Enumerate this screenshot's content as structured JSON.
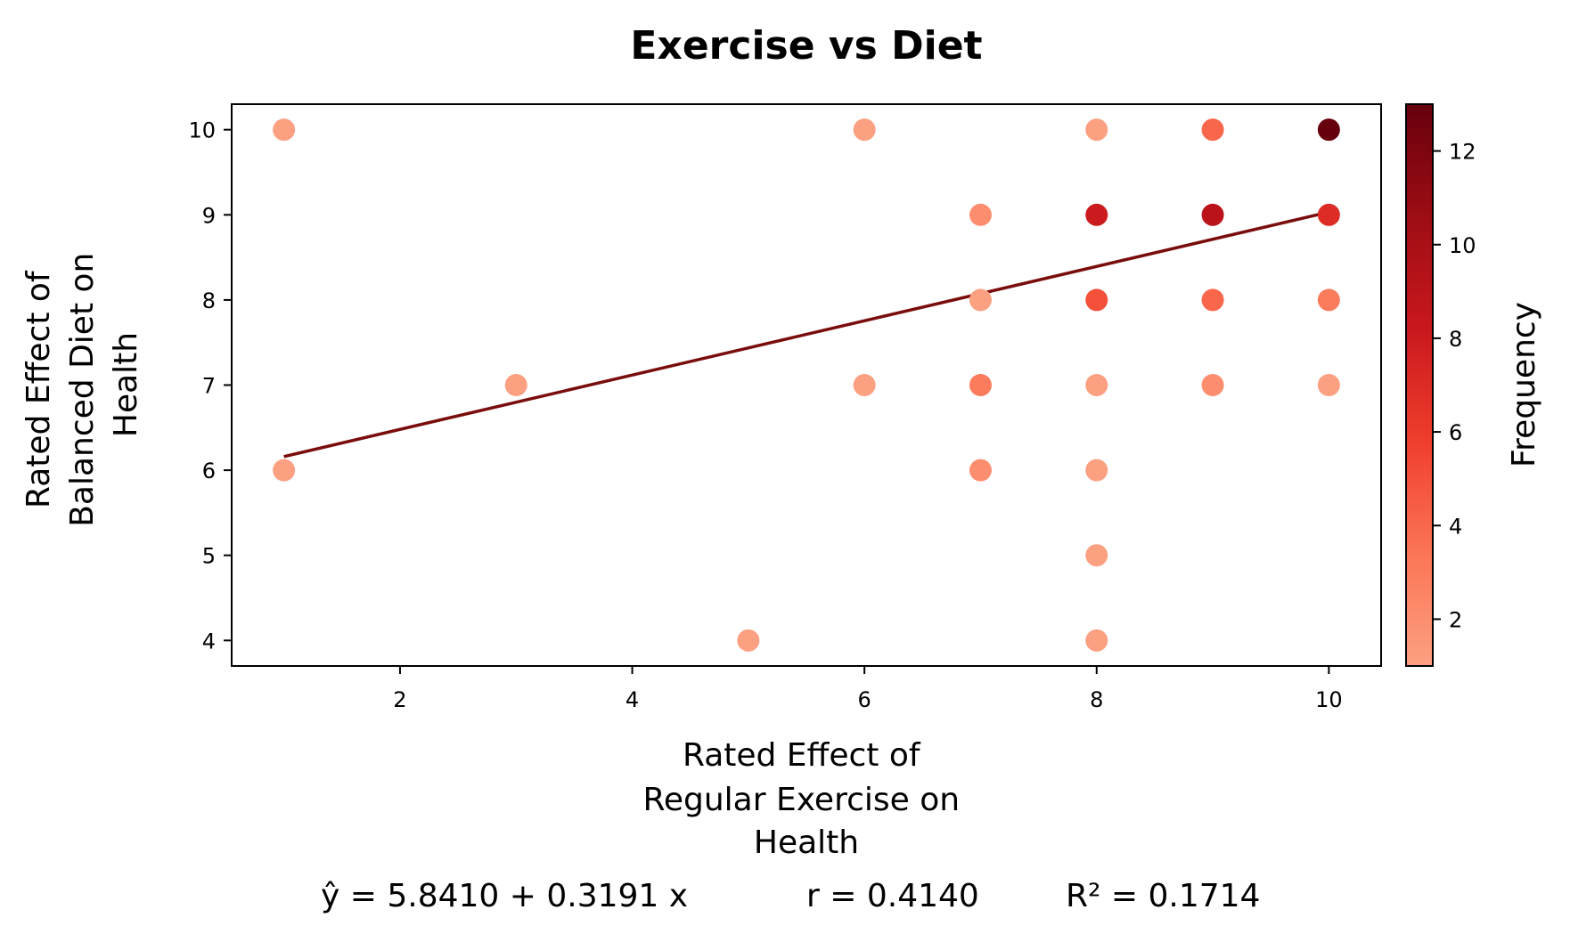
{
  "chart_data": {
    "type": "scatter",
    "title": "Exercise vs Diet",
    "xlabel": [
      "Rated Effect of",
      "Regular Exercise on",
      "Health"
    ],
    "ylabel": [
      "Rated Effect of",
      "Balanced Diet on",
      "Health"
    ],
    "colorbar_label": "Frequency",
    "xlim": [
      0.55,
      10.45
    ],
    "ylim": [
      3.7,
      10.3
    ],
    "xticks": [
      2,
      4,
      6,
      8,
      10
    ],
    "yticks": [
      4,
      5,
      6,
      7,
      8,
      9,
      10
    ],
    "colorbar_range": [
      1,
      13
    ],
    "colorbar_ticks": [
      2,
      4,
      6,
      8,
      10,
      12
    ],
    "colormap": [
      "#fca082",
      "#fb7555",
      "#f03e2c",
      "#c9181d",
      "#9d0d14",
      "#67000d"
    ],
    "points": [
      {
        "x": 1,
        "y": 10,
        "freq": 1
      },
      {
        "x": 1,
        "y": 6,
        "freq": 1
      },
      {
        "x": 3,
        "y": 7,
        "freq": 1
      },
      {
        "x": 5,
        "y": 4,
        "freq": 1
      },
      {
        "x": 6,
        "y": 10,
        "freq": 1
      },
      {
        "x": 6,
        "y": 7,
        "freq": 1
      },
      {
        "x": 7,
        "y": 9,
        "freq": 2
      },
      {
        "x": 7,
        "y": 8,
        "freq": 1
      },
      {
        "x": 7,
        "y": 7,
        "freq": 3
      },
      {
        "x": 7,
        "y": 6,
        "freq": 2
      },
      {
        "x": 8,
        "y": 10,
        "freq": 1
      },
      {
        "x": 8,
        "y": 9,
        "freq": 8
      },
      {
        "x": 8,
        "y": 8,
        "freq": 5
      },
      {
        "x": 8,
        "y": 7,
        "freq": 1
      },
      {
        "x": 8,
        "y": 6,
        "freq": 1
      },
      {
        "x": 8,
        "y": 5,
        "freq": 1
      },
      {
        "x": 8,
        "y": 4,
        "freq": 1
      },
      {
        "x": 9,
        "y": 10,
        "freq": 4
      },
      {
        "x": 9,
        "y": 9,
        "freq": 9
      },
      {
        "x": 9,
        "y": 8,
        "freq": 4
      },
      {
        "x": 9,
        "y": 7,
        "freq": 2
      },
      {
        "x": 10,
        "y": 10,
        "freq": 13
      },
      {
        "x": 10,
        "y": 9,
        "freq": 7
      },
      {
        "x": 10,
        "y": 8,
        "freq": 3
      },
      {
        "x": 10,
        "y": 7,
        "freq": 1
      }
    ],
    "regression": {
      "intercept": 5.841,
      "slope": 0.3191,
      "x_range": [
        1,
        10
      ],
      "color": "#7a0c0c",
      "equation_text": "ŷ = 5.8410 + 0.3191 x",
      "r_text": "r = 0.4140",
      "r2_text": "R² = 0.1714"
    }
  }
}
